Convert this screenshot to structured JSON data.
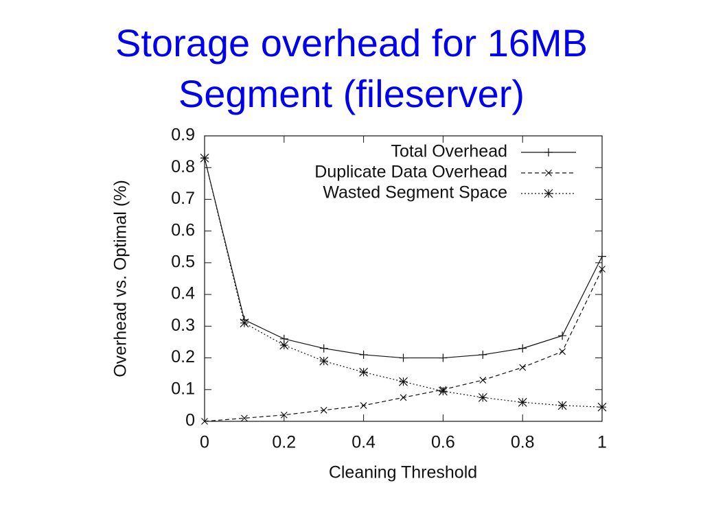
{
  "chart_data": {
    "type": "line",
    "title": "Storage overhead for 16MB Segment (fileserver)",
    "x_label": "Cleaning Threshold",
    "y_label": "Overhead vs. Optimal (%)",
    "x": [
      0,
      0.1,
      0.2,
      0.3,
      0.4,
      0.5,
      0.6,
      0.7,
      0.8,
      0.9,
      1
    ],
    "series": [
      {
        "name": "Total Overhead",
        "color": "#111111",
        "dash": "solid",
        "marker": "plus",
        "values": [
          0.83,
          0.32,
          0.26,
          0.23,
          0.21,
          0.2,
          0.2,
          0.21,
          0.23,
          0.27,
          0.52
        ]
      },
      {
        "name": "Duplicate Data Overhead",
        "color": "#111111",
        "dash": "dashed",
        "marker": "cross",
        "values": [
          0,
          0.01,
          0.02,
          0.035,
          0.05,
          0.075,
          0.1,
          0.13,
          0.17,
          0.22,
          0.48
        ]
      },
      {
        "name": "Wasted Segment Space",
        "color": "#111111",
        "dash": "dotted",
        "marker": "star",
        "values": [
          0.83,
          0.31,
          0.24,
          0.19,
          0.155,
          0.125,
          0.095,
          0.075,
          0.06,
          0.05,
          0.045
        ]
      }
    ],
    "xlim": [
      0,
      1
    ],
    "ylim": [
      0,
      0.9
    ],
    "xticks": [
      0,
      0.2,
      0.4,
      0.6,
      0.8,
      1
    ],
    "yticks": [
      0,
      0.1,
      0.2,
      0.3,
      0.4,
      0.5,
      0.6,
      0.7,
      0.8,
      0.9
    ],
    "legend": "upper right",
    "grid": false
  }
}
